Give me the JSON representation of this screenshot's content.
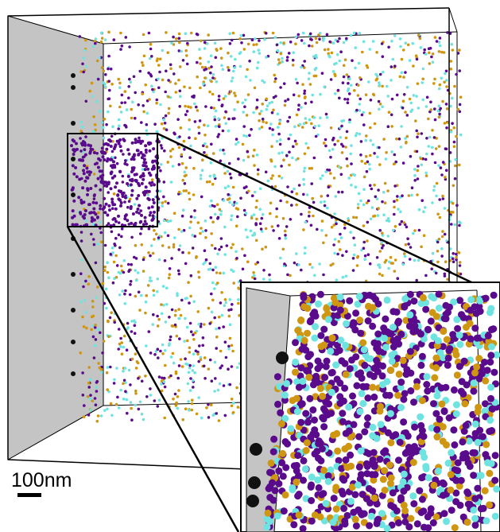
{
  "scale_bar": {
    "label": "100nm"
  }
}
